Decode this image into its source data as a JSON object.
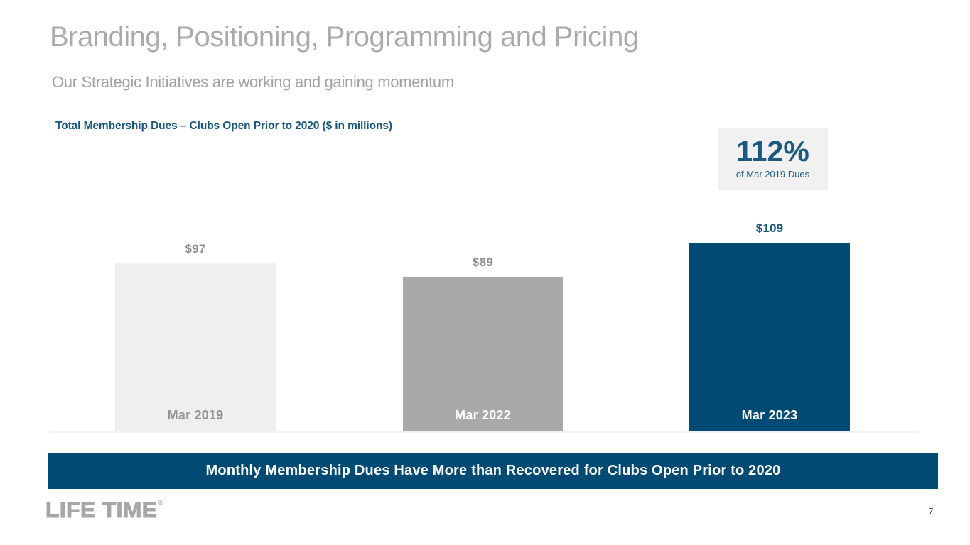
{
  "slide": {
    "title": "Branding, Positioning, Programming and Pricing",
    "subtitle": "Our Strategic Initiatives are working and gaining momentum",
    "banner_text": "Monthly Membership Dues Have More than Recovered for Clubs Open Prior to 2020",
    "logo_text": "LIFE TIME",
    "logo_mark": "®",
    "page_number": "7"
  },
  "chart": {
    "title": "Total Membership Dues – Clubs Open Prior to 2020 ($ in millions)",
    "callout": {
      "value": "112%",
      "caption": "of Mar 2019 Dues"
    }
  },
  "chart_data": {
    "type": "bar",
    "title": "Total Membership Dues – Clubs Open Prior to 2020 ($ in millions)",
    "unit": "$ in millions",
    "categories": [
      "Mar 2019",
      "Mar 2022",
      "Mar 2023"
    ],
    "values": [
      97,
      89,
      109
    ],
    "value_labels": [
      "$97",
      "$89",
      "$109"
    ],
    "annotation": {
      "value": "112%",
      "caption": "of Mar 2019 Dues",
      "applies_to": "Mar 2023"
    },
    "ylim": [
      0,
      120
    ],
    "grid": false,
    "legend": false,
    "bar_colors": [
      "#efefef",
      "#a9a9a9",
      "#004a73"
    ],
    "value_label_colors": [
      "#8d8f91",
      "#8d8f91",
      "#17567e"
    ],
    "category_label_colors": [
      "#919395",
      "#ffffff",
      "#ffffff"
    ]
  },
  "colors": {
    "accent_blue": "#004a73",
    "text_blue": "#17567e",
    "heading_gray": "#a8abad",
    "callout_bg": "#f1f1f2"
  }
}
